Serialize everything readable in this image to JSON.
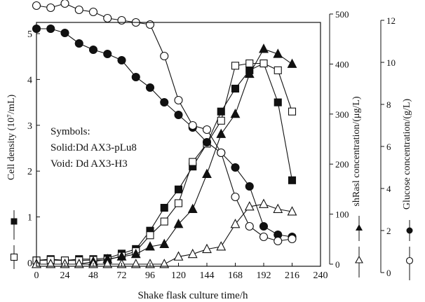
{
  "chart_data": {
    "type": "line",
    "xlabel": "Shake flask culture time/h",
    "xlim": [
      0,
      240
    ],
    "xticks": [
      "0",
      "24",
      "48",
      "72",
      "96",
      "120",
      "144",
      "168",
      "192",
      "216",
      "240"
    ],
    "axes": {
      "cell": {
        "label": "Cell density (10⁷/mL)",
        "ylim": [
          0,
          5
        ],
        "ticks": [
          "0",
          "1",
          "2",
          "3",
          "4",
          "5"
        ]
      },
      "shRasl": {
        "label": "shRasl concentration/(μg/L)",
        "ylim": [
          0,
          500
        ],
        "ticks": [
          "0",
          "100",
          "200",
          "300",
          "400",
          "500"
        ]
      },
      "glucose": {
        "label": "Glucose concentration/(g/L)",
        "ylim": [
          0,
          13
        ],
        "ticks": [
          "0",
          "2",
          "4",
          "6",
          "8",
          "10",
          "12"
        ]
      }
    },
    "annotation": {
      "lines": [
        "Symbols:",
        "Solid:Dd AX3-pLu8",
        "Void: Dd AX3-H3"
      ]
    },
    "series": [
      {
        "axis": "cell",
        "marker": "square",
        "filled": true,
        "x": [
          0,
          12,
          24,
          36,
          48,
          60,
          72,
          84,
          96,
          108,
          120,
          132,
          144,
          156,
          168,
          180,
          192,
          204,
          216
        ],
        "y": [
          0.05,
          0.08,
          0.05,
          0.08,
          0.08,
          0.1,
          0.2,
          0.3,
          0.7,
          1.2,
          1.6,
          2.1,
          2.6,
          3.3,
          3.8,
          4.2,
          4.35,
          3.5,
          1.8
        ]
      },
      {
        "axis": "cell",
        "marker": "square",
        "filled": false,
        "x": [
          0,
          12,
          24,
          36,
          48,
          60,
          72,
          84,
          96,
          108,
          120,
          132,
          144,
          156,
          168,
          180,
          192,
          204,
          216
        ],
        "y": [
          0.05,
          0.06,
          0.05,
          0.05,
          0.06,
          0.06,
          0.15,
          0.25,
          0.6,
          0.9,
          1.3,
          2.2,
          2.6,
          3.1,
          4.3,
          4.35,
          4.35,
          4.2,
          3.3
        ]
      },
      {
        "axis": "shRasl",
        "marker": "triangle",
        "filled": true,
        "x": [
          0,
          12,
          24,
          36,
          48,
          60,
          72,
          84,
          96,
          108,
          120,
          132,
          144,
          156,
          168,
          180,
          192,
          204,
          216
        ],
        "y": [
          0,
          0,
          0,
          0,
          5,
          10,
          15,
          20,
          35,
          40,
          80,
          110,
          180,
          260,
          300,
          380,
          430,
          420,
          400
        ]
      },
      {
        "axis": "shRasl",
        "marker": "triangle",
        "filled": false,
        "x": [
          0,
          12,
          24,
          36,
          48,
          60,
          72,
          84,
          96,
          108,
          120,
          132,
          144,
          156,
          168,
          180,
          192,
          204,
          216
        ],
        "y": [
          0,
          0,
          0,
          0,
          0,
          0,
          0,
          0,
          0,
          0,
          15,
          20,
          30,
          35,
          80,
          115,
          120,
          110,
          105
        ]
      },
      {
        "axis": "glucose",
        "marker": "circle",
        "filled": true,
        "x": [
          0,
          12,
          24,
          36,
          48,
          60,
          72,
          84,
          96,
          108,
          120,
          132,
          144,
          156,
          168,
          180,
          192,
          204,
          216
        ],
        "y": [
          11.6,
          11.6,
          11.4,
          10.9,
          10.6,
          10.4,
          10.1,
          9.3,
          8.8,
          8.1,
          7.5,
          6.9,
          6.2,
          5.7,
          5.0,
          4.1,
          2.2,
          1.8,
          1.7
        ]
      },
      {
        "axis": "glucose",
        "marker": "circle",
        "filled": false,
        "x": [
          0,
          12,
          24,
          36,
          48,
          60,
          72,
          84,
          96,
          108,
          120,
          132,
          144,
          156,
          168,
          180,
          192,
          204,
          216
        ],
        "y": [
          12.7,
          12.6,
          12.8,
          12.5,
          12.4,
          12.1,
          12.0,
          11.9,
          11.8,
          10.3,
          8.2,
          7.0,
          6.8,
          5.7,
          3.6,
          2.2,
          1.7,
          1.5,
          1.6
        ]
      }
    ]
  }
}
